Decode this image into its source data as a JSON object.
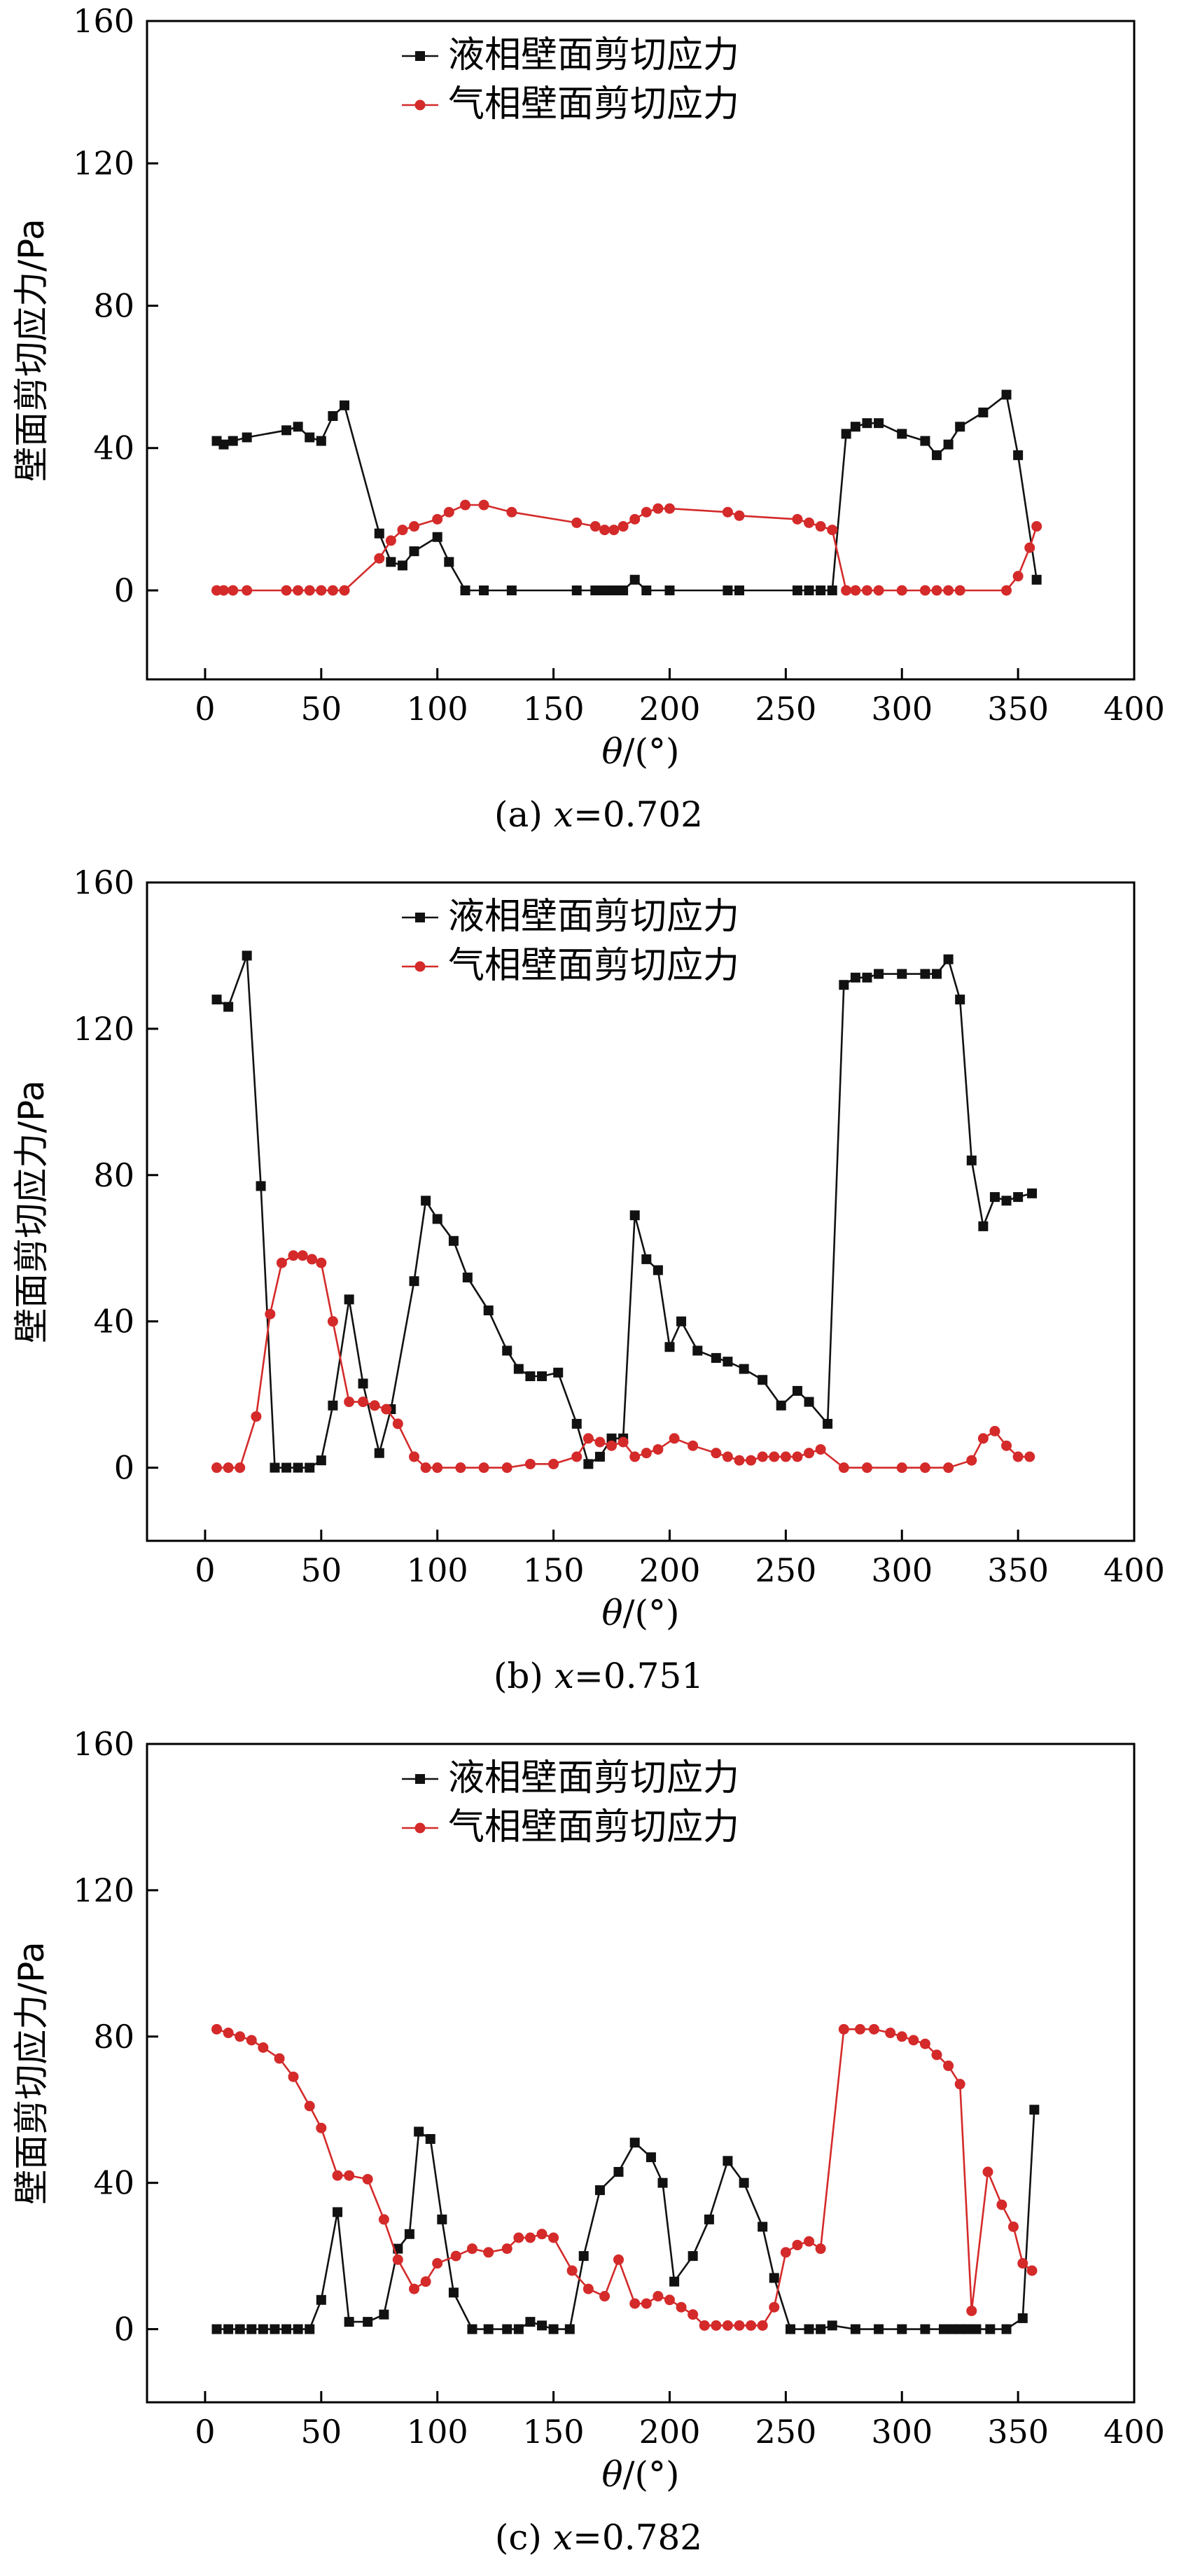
{
  "colors": {
    "liquid": "#111111",
    "gas": "#d42a2a"
  },
  "chart_data": [
    {
      "type": "line",
      "caption": {
        "prefix": "(a) ",
        "var": "x",
        "value": "=0.702"
      },
      "xlabel": {
        "var": "θ",
        "unit": "/(°)"
      },
      "ylabel": "壁面剪切应力/Pa",
      "xlim": [
        -25,
        400
      ],
      "ylim": [
        -25,
        160
      ],
      "xticks": [
        0,
        50,
        100,
        150,
        200,
        250,
        300,
        350,
        400
      ],
      "yticks": [
        0,
        40,
        80,
        120,
        160
      ],
      "legend_position": "top-center",
      "series": [
        {
          "name": "液相壁面剪切应力",
          "marker": "square",
          "color": "#111111",
          "x": [
            5,
            8,
            12,
            18,
            35,
            40,
            45,
            50,
            55,
            60,
            75,
            80,
            85,
            90,
            100,
            105,
            112,
            120,
            132,
            160,
            168,
            172,
            176,
            180,
            185,
            190,
            200,
            225,
            230,
            255,
            260,
            265,
            270,
            276,
            280,
            285,
            290,
            300,
            310,
            315,
            320,
            325,
            335,
            345,
            350,
            358
          ],
          "y": [
            42,
            41,
            42,
            43,
            45,
            46,
            43,
            42,
            49,
            52,
            16,
            8,
            7,
            11,
            15,
            8,
            0,
            0,
            0,
            0,
            0,
            0,
            0,
            0,
            3,
            0,
            0,
            0,
            0,
            0,
            0,
            0,
            0,
            44,
            46,
            47,
            47,
            44,
            42,
            38,
            41,
            46,
            50,
            55,
            38,
            3
          ]
        },
        {
          "name": "气相壁面剪切应力",
          "marker": "circle",
          "color": "#d42a2a",
          "x": [
            5,
            8,
            12,
            18,
            35,
            40,
            45,
            50,
            55,
            60,
            75,
            80,
            85,
            90,
            100,
            105,
            112,
            120,
            132,
            160,
            168,
            172,
            176,
            180,
            185,
            190,
            195,
            200,
            225,
            230,
            255,
            260,
            265,
            270,
            276,
            280,
            285,
            290,
            300,
            310,
            315,
            320,
            325,
            345,
            350,
            355,
            358
          ],
          "y": [
            0,
            0,
            0,
            0,
            0,
            0,
            0,
            0,
            0,
            0,
            9,
            14,
            17,
            18,
            20,
            22,
            24,
            24,
            22,
            19,
            18,
            17,
            17,
            18,
            20,
            22,
            23,
            23,
            22,
            21,
            20,
            19,
            18,
            17,
            0,
            0,
            0,
            0,
            0,
            0,
            0,
            0,
            0,
            0,
            4,
            12,
            18
          ]
        }
      ]
    },
    {
      "type": "line",
      "caption": {
        "prefix": "(b) ",
        "var": "x",
        "value": "=0.751"
      },
      "xlabel": {
        "var": "θ",
        "unit": "/(°)"
      },
      "ylabel": "壁面剪切应力/Pa",
      "xlim": [
        -25,
        400
      ],
      "ylim": [
        -20,
        160
      ],
      "xticks": [
        0,
        50,
        100,
        150,
        200,
        250,
        300,
        350,
        400
      ],
      "yticks": [
        0,
        40,
        80,
        120,
        160
      ],
      "legend_position": "top-center",
      "series": [
        {
          "name": "液相壁面剪切应力",
          "marker": "square",
          "color": "#111111",
          "x": [
            5,
            10,
            18,
            24,
            30,
            35,
            40,
            45,
            50,
            55,
            62,
            68,
            75,
            80,
            90,
            95,
            100,
            107,
            113,
            122,
            130,
            135,
            140,
            145,
            152,
            160,
            165,
            170,
            175,
            180,
            185,
            190,
            195,
            200,
            205,
            212,
            220,
            225,
            232,
            240,
            248,
            255,
            260,
            268,
            275,
            280,
            285,
            290,
            300,
            310,
            315,
            320,
            325,
            330,
            335,
            340,
            345,
            350,
            356
          ],
          "y": [
            128,
            126,
            140,
            77,
            0,
            0,
            0,
            0,
            2,
            17,
            46,
            23,
            4,
            16,
            51,
            73,
            68,
            62,
            52,
            43,
            32,
            27,
            25,
            25,
            26,
            12,
            1,
            3,
            8,
            8,
            69,
            57,
            54,
            33,
            40,
            32,
            30,
            29,
            27,
            24,
            17,
            21,
            18,
            12,
            132,
            134,
            134,
            135,
            135,
            135,
            135,
            139,
            128,
            84,
            66,
            74,
            73,
            74,
            75
          ]
        },
        {
          "name": "气相壁面剪切应力",
          "marker": "circle",
          "color": "#d42a2a",
          "x": [
            5,
            10,
            15,
            22,
            28,
            33,
            38,
            42,
            46,
            50,
            55,
            62,
            68,
            73,
            78,
            83,
            90,
            95,
            100,
            110,
            120,
            130,
            140,
            150,
            160,
            165,
            170,
            175,
            180,
            185,
            190,
            195,
            202,
            210,
            220,
            225,
            230,
            235,
            240,
            245,
            250,
            255,
            260,
            265,
            275,
            285,
            300,
            310,
            320,
            330,
            335,
            340,
            345,
            350,
            355
          ],
          "y": [
            0,
            0,
            0,
            14,
            42,
            56,
            58,
            58,
            57,
            56,
            40,
            18,
            18,
            17,
            16,
            12,
            3,
            0,
            0,
            0,
            0,
            0,
            1,
            1,
            3,
            8,
            7,
            6,
            7,
            3,
            4,
            5,
            8,
            6,
            4,
            3,
            2,
            2,
            3,
            3,
            3,
            3,
            4,
            5,
            0,
            0,
            0,
            0,
            0,
            2,
            8,
            10,
            6,
            3,
            3
          ]
        }
      ]
    },
    {
      "type": "line",
      "caption": {
        "prefix": "(c) ",
        "var": "x",
        "value": "=0.782"
      },
      "xlabel": {
        "var": "θ",
        "unit": "/(°)"
      },
      "ylabel": "壁面剪切应力/Pa",
      "xlim": [
        -25,
        400
      ],
      "ylim": [
        -20,
        160
      ],
      "xticks": [
        0,
        50,
        100,
        150,
        200,
        250,
        300,
        350,
        400
      ],
      "yticks": [
        0,
        40,
        80,
        120,
        160
      ],
      "legend_position": "top-center",
      "series": [
        {
          "name": "液相壁面剪切应力",
          "marker": "square",
          "color": "#111111",
          "x": [
            5,
            10,
            15,
            20,
            25,
            30,
            35,
            40,
            45,
            50,
            57,
            62,
            70,
            77,
            83,
            88,
            92,
            97,
            102,
            107,
            115,
            122,
            130,
            135,
            140,
            145,
            150,
            157,
            163,
            170,
            178,
            185,
            192,
            197,
            202,
            210,
            217,
            225,
            232,
            240,
            245,
            252,
            260,
            265,
            270,
            280,
            290,
            300,
            310,
            318,
            322,
            325,
            328,
            332,
            338,
            345,
            352,
            357
          ],
          "y": [
            0,
            0,
            0,
            0,
            0,
            0,
            0,
            0,
            0,
            8,
            32,
            2,
            2,
            4,
            22,
            26,
            54,
            52,
            30,
            10,
            0,
            0,
            0,
            0,
            2,
            1,
            0,
            0,
            20,
            38,
            43,
            51,
            47,
            40,
            13,
            20,
            30,
            46,
            40,
            28,
            14,
            0,
            0,
            0,
            1,
            0,
            0,
            0,
            0,
            0,
            0,
            0,
            0,
            0,
            0,
            0,
            3,
            60
          ]
        },
        {
          "name": "气相壁面剪切应力",
          "marker": "circle",
          "color": "#d42a2a",
          "x": [
            5,
            10,
            15,
            20,
            25,
            32,
            38,
            45,
            50,
            57,
            62,
            70,
            77,
            83,
            90,
            95,
            100,
            108,
            115,
            122,
            130,
            135,
            140,
            145,
            150,
            158,
            165,
            172,
            178,
            185,
            190,
            195,
            200,
            205,
            210,
            215,
            220,
            225,
            230,
            235,
            240,
            245,
            250,
            255,
            260,
            265,
            275,
            282,
            288,
            295,
            300,
            305,
            310,
            315,
            320,
            325,
            330,
            337,
            343,
            348,
            352,
            356
          ],
          "y": [
            82,
            81,
            80,
            79,
            77,
            74,
            69,
            61,
            55,
            42,
            42,
            41,
            30,
            19,
            11,
            13,
            18,
            20,
            22,
            21,
            22,
            25,
            25,
            26,
            25,
            16,
            11,
            9,
            19,
            7,
            7,
            9,
            8,
            6,
            4,
            1,
            1,
            1,
            1,
            1,
            1,
            6,
            21,
            23,
            24,
            22,
            82,
            82,
            82,
            81,
            80,
            79,
            78,
            75,
            72,
            67,
            5,
            43,
            34,
            28,
            18,
            16
          ]
        }
      ]
    }
  ]
}
